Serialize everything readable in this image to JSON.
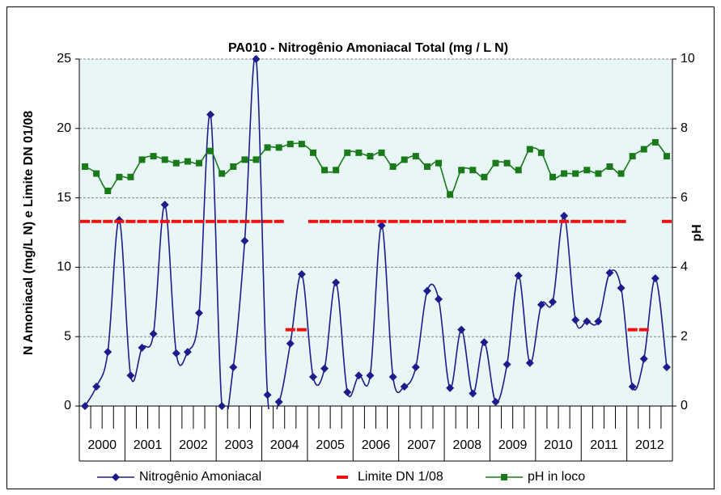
{
  "chart_data": {
    "type": "line",
    "title": "PA010 - Nitrogênio Amoniacal Total (mg / L N)",
    "y_label": "N Amoniacal (mg/L N) e Limite DN 01/08",
    "y2_label": "pH",
    "categories": [
      null,
      null,
      null,
      null,
      null,
      null,
      null,
      null,
      null,
      null,
      null,
      null,
      null,
      null,
      null,
      null,
      null,
      null,
      null,
      null,
      null,
      null,
      null,
      null,
      null,
      null,
      null,
      null,
      null,
      null,
      null,
      null,
      null,
      null,
      null,
      null,
      null,
      null,
      null,
      null,
      null,
      null,
      null,
      null,
      null,
      null,
      null,
      null,
      null,
      null,
      null,
      null
    ],
    "year_groups": [
      "2000",
      "2001",
      "2002",
      "2003",
      "2004",
      "2005",
      "2006",
      "2007",
      "2008",
      "2009",
      "2010",
      "2011",
      "2012"
    ],
    "ylim": [
      0,
      25
    ],
    "yticks": [
      0,
      5,
      10,
      15,
      20,
      25
    ],
    "y2lim": [
      0,
      10
    ],
    "y2ticks": [
      0,
      2,
      4,
      6,
      8,
      10
    ],
    "grid": true,
    "legend": "bottom",
    "series": [
      {
        "name": "Nitrogênio Amoniacal",
        "color": "#1c1c8c",
        "style": "line-diamond",
        "values": [
          0,
          1.4,
          3.9,
          13.4,
          2.2,
          4.2,
          5.2,
          14.5,
          3.8,
          3.9,
          6.7,
          21,
          0,
          2.8,
          11.9,
          25,
          0.8,
          0.3,
          4.5,
          9.5,
          2.1,
          2.7,
          8.9,
          1,
          2.2,
          2.2,
          13,
          2.1,
          1.4,
          2.8,
          8.3,
          7.7,
          1.3,
          5.5,
          0.9,
          4.6,
          0.3,
          3,
          9.4,
          3.1,
          7.3,
          7.5,
          13.7,
          6.2,
          6.1,
          6.1,
          9.6,
          8.5,
          1.4,
          3.4,
          9.2,
          2.8
        ]
      },
      {
        "name": "Limite DN 1/08",
        "color": "#ee1111",
        "style": "dash",
        "values": [
          13.3,
          13.3,
          13.3,
          13.3,
          13.3,
          13.3,
          13.3,
          13.3,
          13.3,
          13.3,
          13.3,
          13.3,
          13.3,
          13.3,
          13.3,
          13.3,
          13.3,
          13.3,
          5.5,
          5.5,
          13.3,
          13.3,
          13.3,
          13.3,
          13.3,
          13.3,
          13.3,
          13.3,
          13.3,
          13.3,
          13.3,
          13.3,
          13.3,
          13.3,
          13.3,
          13.3,
          13.3,
          13.3,
          13.3,
          13.3,
          13.3,
          13.3,
          13.3,
          13.3,
          13.3,
          13.3,
          13.3,
          13.3,
          5.5,
          5.5,
          null,
          13.3
        ]
      },
      {
        "name": "pH in loco",
        "color": "#1a7a1a",
        "style": "line-square",
        "axis": "y2",
        "values": [
          6.9,
          6.7,
          6.2,
          6.6,
          6.6,
          7.1,
          7.2,
          7.1,
          7.0,
          7.05,
          7.0,
          7.35,
          6.7,
          6.9,
          7.1,
          7.1,
          7.45,
          7.45,
          7.55,
          7.55,
          7.3,
          6.8,
          6.8,
          7.3,
          7.3,
          7.2,
          7.3,
          6.9,
          7.1,
          7.2,
          6.9,
          7.0,
          6.1,
          6.8,
          6.8,
          6.6,
          7.0,
          7.0,
          6.8,
          7.4,
          7.3,
          6.6,
          6.7,
          6.7,
          6.8,
          6.7,
          6.9,
          6.7,
          7.2,
          7.4,
          7.6,
          7.2
        ]
      }
    ]
  }
}
